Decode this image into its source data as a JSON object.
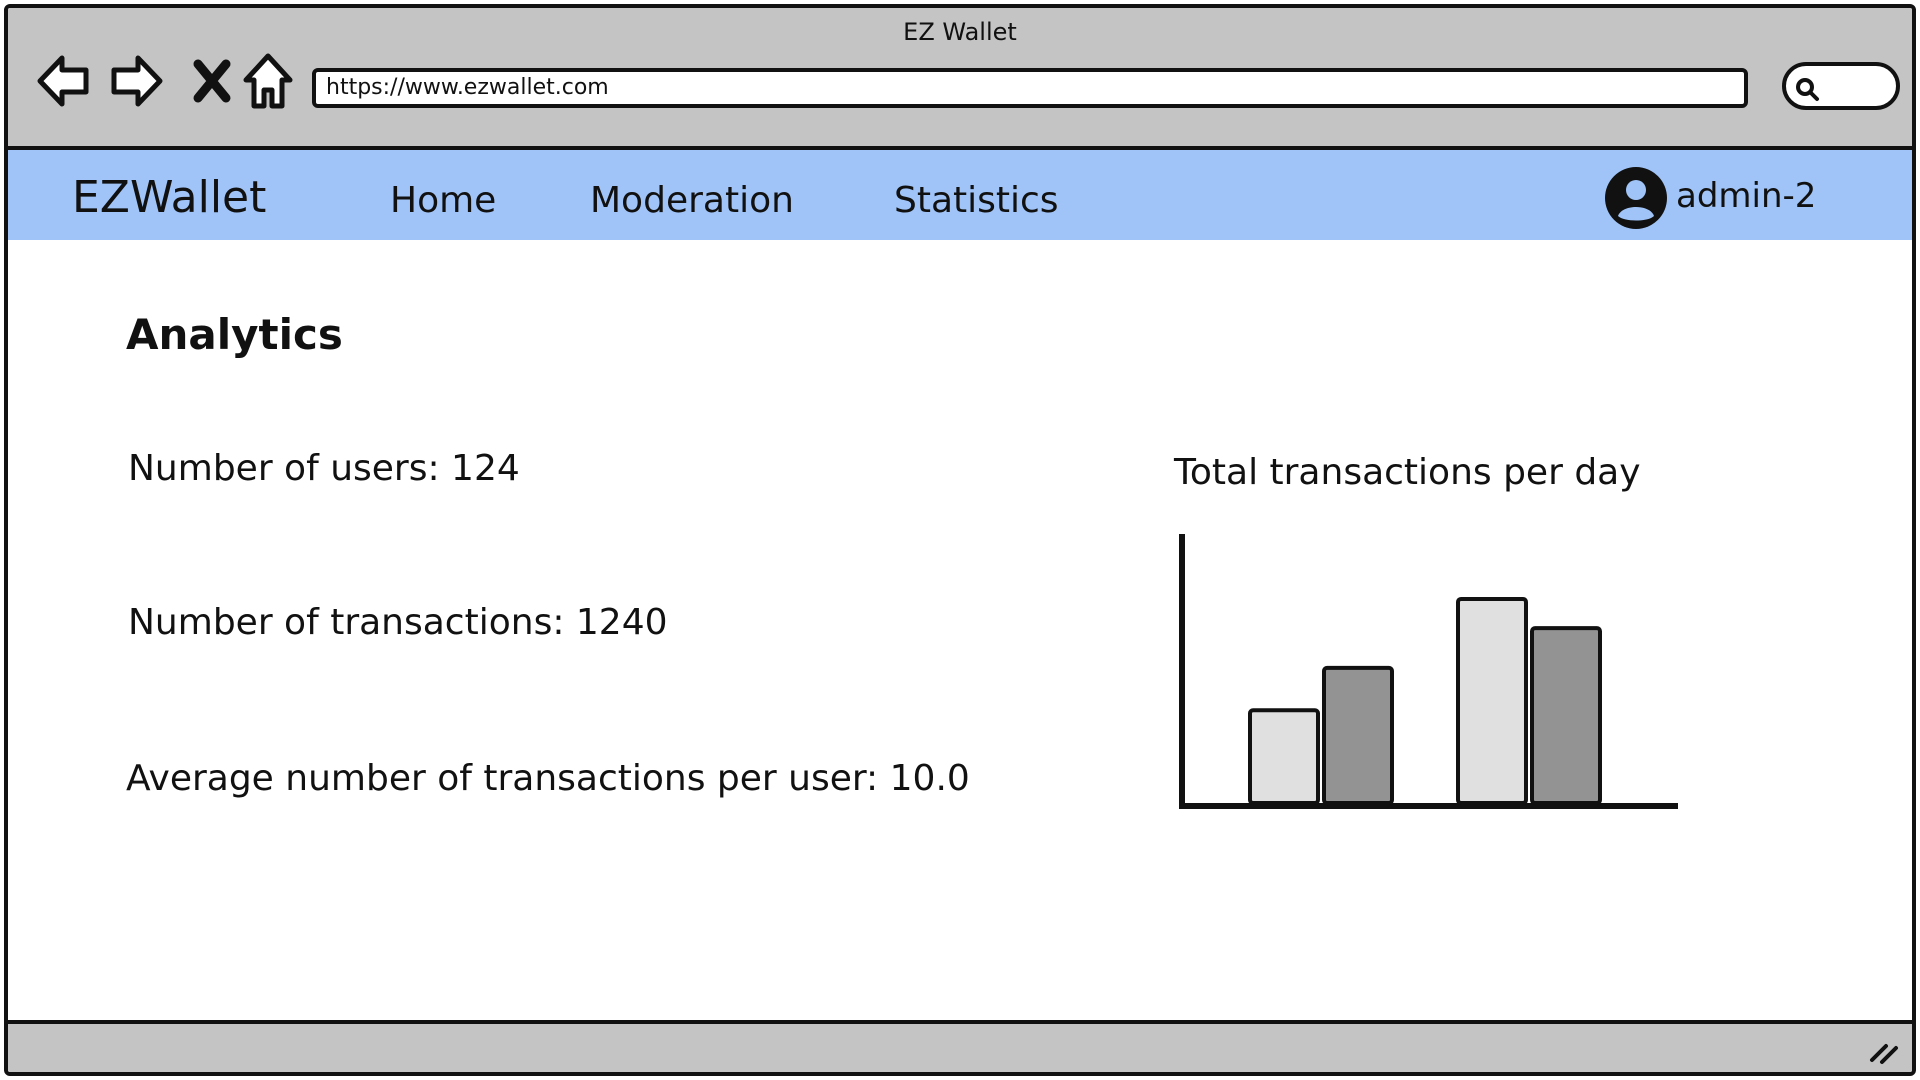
{
  "browser": {
    "window_title": "EZ Wallet",
    "url": "https://www.ezwallet.com",
    "icons": [
      "back-arrow-icon",
      "forward-arrow-icon",
      "close-icon",
      "home-icon",
      "search-icon",
      "resize-grip-icon"
    ]
  },
  "app": {
    "brand": "EZWallet",
    "nav": [
      {
        "label": "Home"
      },
      {
        "label": "Moderation"
      },
      {
        "label": "Statistics"
      }
    ],
    "user": {
      "name": "admin-2",
      "icon": "user-avatar-icon"
    }
  },
  "page": {
    "title": "Analytics",
    "stats": [
      "Number of users: 124",
      "Number of transactions: 1240",
      "Average number of transactions per user: 10.0"
    ]
  },
  "colors": {
    "nav_bg": "#a0c4f8",
    "chrome_bg": "#c4c4c4",
    "bar_light": "#e0e0e0",
    "bar_dark": "#939393"
  },
  "chart_data": {
    "type": "bar",
    "title": "Total transactions per day",
    "xlabel": "",
    "ylabel": "",
    "categories": [
      "",
      ""
    ],
    "series": [
      {
        "values": [
          0.35,
          0.77
        ],
        "color": "#e0e0e0"
      },
      {
        "values": [
          0.51,
          0.66
        ],
        "color": "#939393"
      }
    ],
    "ylim": [
      0,
      1
    ],
    "grid": false,
    "legend": "none"
  }
}
